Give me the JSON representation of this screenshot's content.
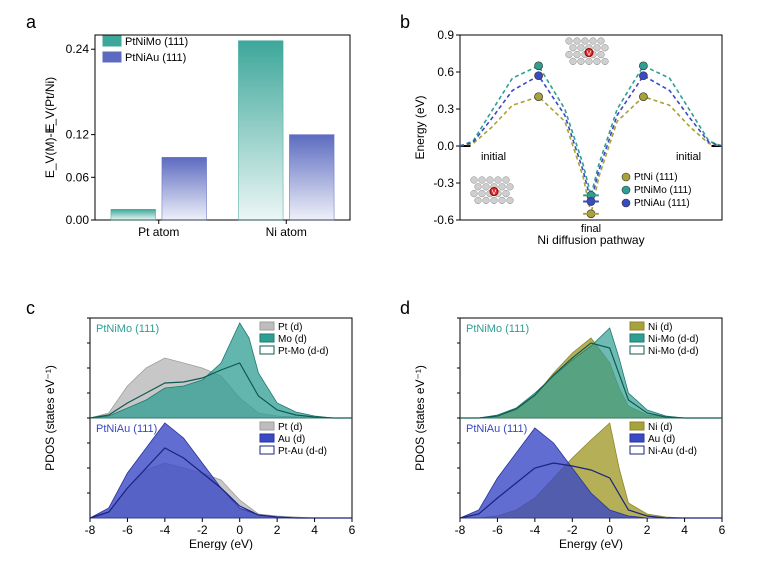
{
  "labels": {
    "a": "a",
    "b": "b",
    "c": "c",
    "d": "d"
  },
  "panelA": {
    "title_y": "E_V(M)-E_V(Pt/Ni)",
    "categories": [
      "Pt atom",
      "Ni atom"
    ],
    "series": [
      {
        "name": "PtNiMo (111)",
        "color": "#3da79a",
        "values": [
          0.015,
          0.252
        ]
      },
      {
        "name": "PtNiAu (111)",
        "color": "#5c6bc0",
        "values": [
          0.088,
          0.12
        ]
      }
    ],
    "ylim": [
      0,
      0.26
    ],
    "yticks": [
      0.0,
      0.06,
      0.12,
      0.24
    ],
    "ytick_labels": [
      "0.00",
      "0.06",
      "0.12",
      "0.24"
    ],
    "bar_width": 0.35,
    "bar_gap": 0.05,
    "bg": "#ffffff",
    "axis_color": "#000000",
    "label_fontsize": 12,
    "legend_fontsize": 11
  },
  "panelB": {
    "xlabel": "Ni diffusion pathway",
    "ylabel": "Energy (eV)",
    "ylim": [
      -0.6,
      0.9
    ],
    "yticks": [
      -0.6,
      -0.3,
      0.0,
      0.3,
      0.6,
      0.9
    ],
    "xlim": [
      0,
      1
    ],
    "annotations": {
      "initial": "initial",
      "final": "final"
    },
    "series": [
      {
        "name": "PtNi (111)",
        "color": "#a8a23a",
        "dash": "4,3",
        "x": [
          0.0,
          0.05,
          0.12,
          0.2,
          0.3,
          0.4,
          0.47,
          0.5,
          0.53,
          0.6,
          0.7,
          0.8,
          0.88,
          0.95,
          1.0
        ],
        "y": [
          0.0,
          0.02,
          0.15,
          0.33,
          0.4,
          0.2,
          -0.25,
          -0.55,
          -0.25,
          0.2,
          0.4,
          0.33,
          0.15,
          0.02,
          0.0
        ]
      },
      {
        "name": "PtNiMo (111)",
        "color": "#2f9e93",
        "dash": "4,3",
        "x": [
          0.0,
          0.05,
          0.12,
          0.2,
          0.3,
          0.4,
          0.47,
          0.5,
          0.53,
          0.6,
          0.7,
          0.8,
          0.88,
          0.95,
          1.0
        ],
        "y": [
          0.0,
          0.04,
          0.28,
          0.55,
          0.65,
          0.3,
          -0.15,
          -0.4,
          -0.15,
          0.3,
          0.65,
          0.55,
          0.28,
          0.04,
          0.0
        ]
      },
      {
        "name": "PtNiAu (111)",
        "color": "#3a49c4",
        "dash": "4,3",
        "x": [
          0.0,
          0.05,
          0.12,
          0.2,
          0.3,
          0.4,
          0.47,
          0.5,
          0.53,
          0.6,
          0.7,
          0.8,
          0.88,
          0.95,
          1.0
        ],
        "y": [
          0.0,
          0.03,
          0.22,
          0.45,
          0.57,
          0.25,
          -0.2,
          -0.45,
          -0.2,
          0.25,
          0.57,
          0.45,
          0.22,
          0.03,
          0.0
        ]
      }
    ],
    "markers": [
      {
        "color": "#a8a23a",
        "x": 0.3,
        "y": 0.4
      },
      {
        "color": "#2f9e93",
        "x": 0.3,
        "y": 0.65
      },
      {
        "color": "#3a49c4",
        "x": 0.3,
        "y": 0.57
      },
      {
        "color": "#a8a23a",
        "x": 0.7,
        "y": 0.4
      },
      {
        "color": "#2f9e93",
        "x": 0.7,
        "y": 0.65
      },
      {
        "color": "#3a49c4",
        "x": 0.7,
        "y": 0.57
      },
      {
        "color": "#a8a23a",
        "x": 0.5,
        "y": -0.55
      },
      {
        "color": "#2f9e93",
        "x": 0.5,
        "y": -0.4
      },
      {
        "color": "#3a49c4",
        "x": 0.5,
        "y": -0.45
      }
    ],
    "legend_fontsize": 10,
    "label_fontsize": 12,
    "axis_color": "#000000"
  },
  "panelC": {
    "xlabel": "Energy (eV)",
    "ylabel": "PDOS (states eV⁻¹)",
    "xlim": [
      -8,
      6
    ],
    "xticks": [
      -8,
      -6,
      -4,
      -2,
      0,
      2,
      4,
      6
    ],
    "top": {
      "title": "PtNiMo (111)",
      "title_color": "#2f9e93",
      "traces": [
        {
          "name": "Pt (d)",
          "fill": "#bdbdbd",
          "stroke": "#9e9e9e",
          "opacity": 0.85,
          "x": [
            -8,
            -7,
            -6,
            -5,
            -4,
            -3,
            -2,
            -1,
            0,
            1,
            2,
            3,
            4,
            5,
            6
          ],
          "y": [
            0,
            0.05,
            0.32,
            0.5,
            0.6,
            0.55,
            0.5,
            0.42,
            0.2,
            0.05,
            0.02,
            0.01,
            0.0,
            0.0,
            0.0
          ]
        },
        {
          "name": "Mo (d)",
          "fill": "#2f9e93",
          "stroke": "#1f7a70",
          "opacity": 0.75,
          "x": [
            -8,
            -7,
            -6,
            -5,
            -4,
            -3,
            -2,
            -1,
            0,
            0.5,
            1,
            2,
            3,
            4,
            5,
            6
          ],
          "y": [
            0,
            0.02,
            0.1,
            0.18,
            0.3,
            0.32,
            0.38,
            0.55,
            0.95,
            0.8,
            0.45,
            0.15,
            0.06,
            0.02,
            0.0,
            0.0
          ]
        },
        {
          "name": "Pt-Mo (d-d)",
          "fill": "none",
          "stroke": "#0f5a52",
          "opacity": 1,
          "x": [
            -8,
            -7,
            -6,
            -5,
            -4,
            -3,
            -2,
            -1,
            0,
            1,
            2,
            3,
            4,
            5,
            6
          ],
          "y": [
            0,
            0.03,
            0.15,
            0.25,
            0.35,
            0.36,
            0.4,
            0.48,
            0.55,
            0.22,
            0.08,
            0.03,
            0.01,
            0.0,
            0.0
          ]
        }
      ]
    },
    "bottom": {
      "title": "PtNiAu (111)",
      "title_color": "#3a49c4",
      "traces": [
        {
          "name": "Pt (d)",
          "fill": "#bdbdbd",
          "stroke": "#9e9e9e",
          "opacity": 0.85,
          "x": [
            -8,
            -7,
            -6,
            -5,
            -4,
            -3,
            -2,
            -1,
            0,
            1,
            2,
            3,
            4,
            5,
            6
          ],
          "y": [
            0,
            0.05,
            0.3,
            0.48,
            0.55,
            0.5,
            0.45,
            0.38,
            0.18,
            0.04,
            0.02,
            0.01,
            0.0,
            0.0,
            0.0
          ]
        },
        {
          "name": "Au (d)",
          "fill": "#3a49c4",
          "stroke": "#28339e",
          "opacity": 0.8,
          "x": [
            -8,
            -7,
            -6,
            -5,
            -4,
            -3,
            -2,
            -1,
            0,
            1,
            2,
            3,
            4,
            5,
            6
          ],
          "y": [
            0,
            0.1,
            0.45,
            0.7,
            0.95,
            0.8,
            0.55,
            0.3,
            0.1,
            0.03,
            0.01,
            0.0,
            0.0,
            0.0,
            0.0
          ]
        },
        {
          "name": "Pt-Au (d-d)",
          "fill": "none",
          "stroke": "#1a237e",
          "opacity": 1,
          "x": [
            -8,
            -7,
            -6,
            -5,
            -4,
            -3,
            -2,
            -1,
            0,
            1,
            2,
            3,
            4,
            5,
            6
          ],
          "y": [
            0,
            0.06,
            0.3,
            0.5,
            0.7,
            0.6,
            0.45,
            0.3,
            0.12,
            0.03,
            0.01,
            0.0,
            0.0,
            0.0,
            0.0
          ]
        }
      ]
    },
    "axis_color": "#000000",
    "legend_fontsize": 10,
    "label_fontsize": 12
  },
  "panelD": {
    "xlabel": "Energy (eV)",
    "ylabel": "PDOS (states eV⁻¹)",
    "xlim": [
      -8,
      6
    ],
    "xticks": [
      -8,
      -6,
      -4,
      -2,
      0,
      2,
      4,
      6
    ],
    "top": {
      "title": "PtNiMo (111)",
      "title_color": "#2f9e93",
      "traces": [
        {
          "name": "Ni (d)",
          "fill": "#a8a23a",
          "stroke": "#8c872c",
          "opacity": 0.85,
          "x": [
            -8,
            -7,
            -6,
            -5,
            -4,
            -3,
            -2,
            -1,
            0,
            0.5,
            1,
            2,
            3,
            4,
            5,
            6
          ],
          "y": [
            0,
            0.0,
            0.02,
            0.08,
            0.22,
            0.45,
            0.65,
            0.8,
            0.55,
            0.3,
            0.12,
            0.03,
            0.01,
            0.0,
            0.0,
            0.0
          ]
        },
        {
          "name": "Ni-Mo (d-d)",
          "fill": "#2f9e93",
          "stroke": "#1f7a70",
          "opacity": 0.7,
          "x": [
            -8,
            -7,
            -6,
            -5,
            -4,
            -3,
            -2,
            -1,
            0,
            0.5,
            1,
            2,
            3,
            4,
            5,
            6
          ],
          "y": [
            0,
            0.0,
            0.03,
            0.1,
            0.25,
            0.42,
            0.58,
            0.72,
            0.9,
            0.6,
            0.25,
            0.08,
            0.02,
            0.0,
            0.0,
            0.0
          ]
        },
        {
          "name": "Ni-Mo (d-d)",
          "fill": "none",
          "stroke": "#0f5a52",
          "opacity": 1,
          "x": [
            -8,
            -7,
            -6,
            -5,
            -4,
            -3,
            -2,
            -1,
            0,
            1,
            2,
            3,
            4,
            5,
            6
          ],
          "y": [
            0,
            0.0,
            0.02,
            0.09,
            0.23,
            0.43,
            0.6,
            0.75,
            0.7,
            0.18,
            0.05,
            0.01,
            0.0,
            0.0,
            0.0
          ]
        }
      ]
    },
    "bottom": {
      "title": "PtNiAu (111)",
      "title_color": "#3a49c4",
      "traces": [
        {
          "name": "Ni (d)",
          "fill": "#a8a23a",
          "stroke": "#8c872c",
          "opacity": 0.85,
          "x": [
            -8,
            -7,
            -6,
            -5,
            -4,
            -3,
            -2,
            -1,
            0,
            0.5,
            1,
            2,
            3,
            4,
            5,
            6
          ],
          "y": [
            0,
            0.0,
            0.02,
            0.08,
            0.2,
            0.4,
            0.6,
            0.78,
            0.95,
            0.5,
            0.15,
            0.04,
            0.01,
            0.0,
            0.0,
            0.0
          ]
        },
        {
          "name": "Au (d)",
          "fill": "#3a49c4",
          "stroke": "#28339e",
          "opacity": 0.8,
          "x": [
            -8,
            -7,
            -6,
            -5,
            -4,
            -3,
            -2,
            -1,
            0,
            1,
            2,
            3,
            4,
            5,
            6
          ],
          "y": [
            0,
            0.08,
            0.4,
            0.65,
            0.9,
            0.75,
            0.5,
            0.25,
            0.08,
            0.02,
            0.0,
            0.0,
            0.0,
            0.0,
            0.0
          ]
        },
        {
          "name": "Ni-Au (d-d)",
          "fill": "none",
          "stroke": "#1a237e",
          "opacity": 1,
          "x": [
            -8,
            -7,
            -6,
            -5,
            -4,
            -3,
            -2,
            -1,
            0,
            1,
            2,
            3,
            4,
            5,
            6
          ],
          "y": [
            0,
            0.04,
            0.2,
            0.35,
            0.5,
            0.55,
            0.52,
            0.48,
            0.4,
            0.08,
            0.02,
            0.0,
            0.0,
            0.0,
            0.0
          ]
        }
      ]
    },
    "axis_color": "#000000",
    "legend_fontsize": 10,
    "label_fontsize": 12
  }
}
